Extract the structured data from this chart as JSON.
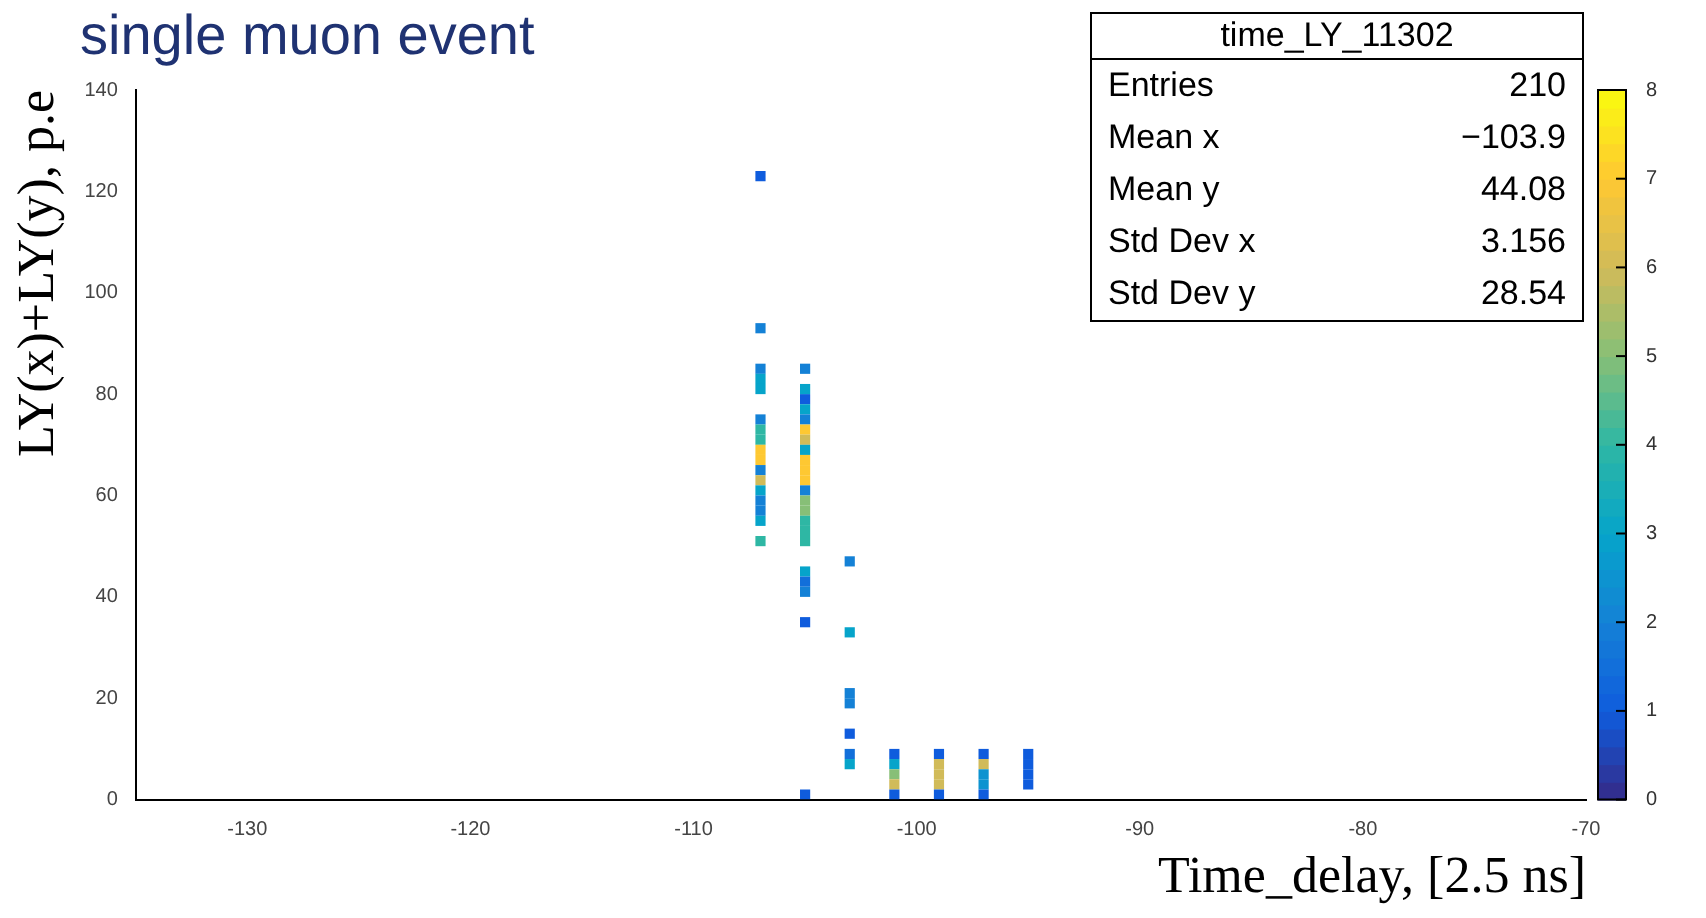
{
  "chart_data": {
    "type": "scatter",
    "title": "single muon event",
    "xlabel": "Time_delay, [2.5 ns]",
    "ylabel": "LY(x)+LY(y), p.e",
    "marker": "square",
    "grid": false,
    "legend": false,
    "xlim": [
      -135,
      -70
    ],
    "xticks": [
      -130,
      -120,
      -110,
      -100,
      -90,
      -80,
      -70
    ],
    "ylim": [
      0,
      140
    ],
    "yticks": [
      0,
      20,
      40,
      60,
      80,
      100,
      120,
      140
    ],
    "clim": [
      0,
      8
    ],
    "cticks": [
      0,
      1,
      2,
      3,
      4,
      5,
      6,
      7,
      8
    ],
    "x": [
      -107,
      -107,
      -107,
      -105,
      -107,
      -105,
      -105,
      -107,
      -105,
      -107,
      -105,
      -107,
      -105,
      -107,
      -105,
      -107,
      -105,
      -107,
      -105,
      -107,
      -105,
      -107,
      -105,
      -107,
      -105,
      -107,
      -105,
      -107,
      -105,
      -107,
      -105,
      -105,
      -107,
      -105,
      -105,
      -103,
      -105,
      -105,
      -105,
      -103,
      -103,
      -103,
      -103,
      -103,
      -103,
      -101,
      -101,
      -101,
      -101,
      -101,
      -99,
      -99,
      -99,
      -99,
      -99,
      -97,
      -97,
      -97,
      -97,
      -97,
      -95,
      -95,
      -95,
      -95,
      -105
    ],
    "values": [
      123,
      93,
      85,
      85,
      83,
      79,
      77,
      81,
      81,
      75,
      75,
      73,
      73,
      71,
      71,
      69,
      69,
      67,
      67,
      65,
      65,
      63,
      63,
      61,
      61,
      59,
      59,
      57,
      57,
      55,
      55,
      53,
      51,
      51,
      45,
      47,
      43,
      41,
      35,
      33,
      21,
      19,
      13,
      9,
      7,
      9,
      7,
      5,
      3,
      1,
      9,
      7,
      5,
      3,
      1,
      9,
      7,
      5,
      3,
      1,
      9,
      7,
      5,
      3,
      1
    ],
    "cvalues": [
      1,
      2,
      2,
      2,
      3,
      1,
      3,
      3,
      3,
      2,
      2,
      4,
      7,
      4,
      6,
      7,
      3,
      7,
      7,
      2,
      7,
      6,
      7,
      3,
      2,
      2,
      5,
      2,
      5,
      3,
      4,
      4,
      4,
      4,
      3,
      2,
      1.5,
      2,
      1,
      3,
      2,
      2,
      1,
      1.5,
      3,
      1,
      3,
      5,
      6,
      1,
      1,
      6,
      6,
      6,
      1,
      1,
      6,
      2.5,
      2.5,
      1,
      1,
      1,
      1,
      1,
      1
    ],
    "annotations": [
      "time_LY_11302",
      "Entries",
      "210",
      "Mean x",
      "−103.9",
      "Mean y",
      "44.08",
      "Std Dev x",
      "3.156",
      "Std Dev y",
      "28.54"
    ]
  }
}
